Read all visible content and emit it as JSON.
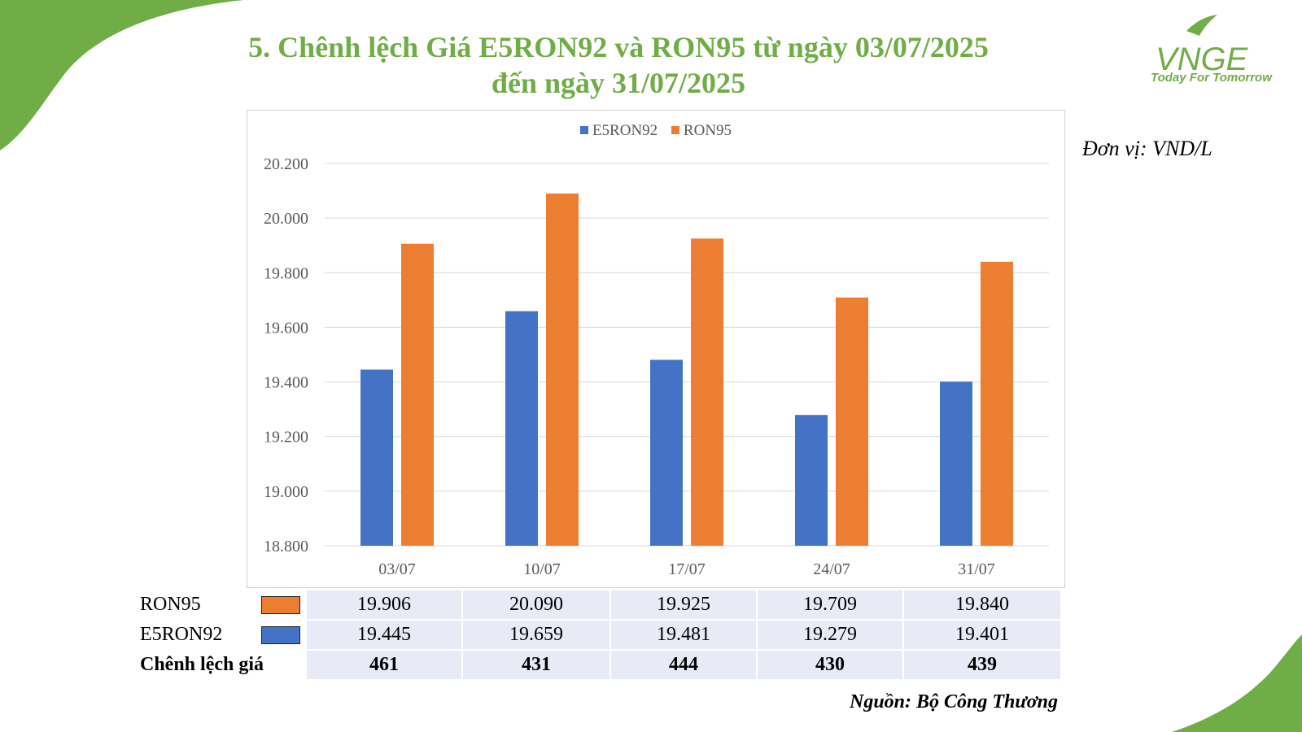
{
  "title_line1": "5. Chênh lệch Giá E5RON92 và RON95 từ ngày 03/07/2025",
  "title_line2": "đến ngày 31/07/2025",
  "logo": {
    "mark": "VNGE",
    "tagline": "Today For Tomorrow"
  },
  "unit": "Đơn vị: VND/L",
  "source": "Nguồn: Bộ Công Thương",
  "colors": {
    "green": "#70ad47",
    "e5": "#4472c4",
    "ron": "#ed7d31"
  },
  "chart_data": {
    "type": "bar",
    "categories": [
      "03/07",
      "10/07",
      "17/07",
      "24/07",
      "31/07"
    ],
    "series": [
      {
        "name": "E5RON92",
        "values": [
          19445,
          19659,
          19481,
          19279,
          19401
        ],
        "color": "#4472c4"
      },
      {
        "name": "RON95",
        "values": [
          19906,
          20090,
          19925,
          19709,
          19840
        ],
        "color": "#ed7d31"
      }
    ],
    "ylim": [
      18800,
      20200
    ],
    "yticks": [
      18800,
      19000,
      19200,
      19400,
      19600,
      19800,
      20000,
      20200
    ],
    "ytick_labels": [
      "18.800",
      "19.000",
      "19.200",
      "19.400",
      "19.600",
      "19.800",
      "20.000",
      "20.200"
    ],
    "legend_position": "top-center",
    "grid": true
  },
  "table": {
    "rows": [
      {
        "label": "RON95",
        "color": "#ed7d31",
        "values": [
          "19.906",
          "20.090",
          "19.925",
          "19.709",
          "19.840"
        ]
      },
      {
        "label": "E5RON92",
        "color": "#4472c4",
        "values": [
          "19.445",
          "19.659",
          "19.481",
          "19.279",
          "19.401"
        ]
      }
    ],
    "diff": {
      "label": "Chênh lệch giá",
      "values": [
        "461",
        "431",
        "444",
        "430",
        "439"
      ]
    }
  }
}
